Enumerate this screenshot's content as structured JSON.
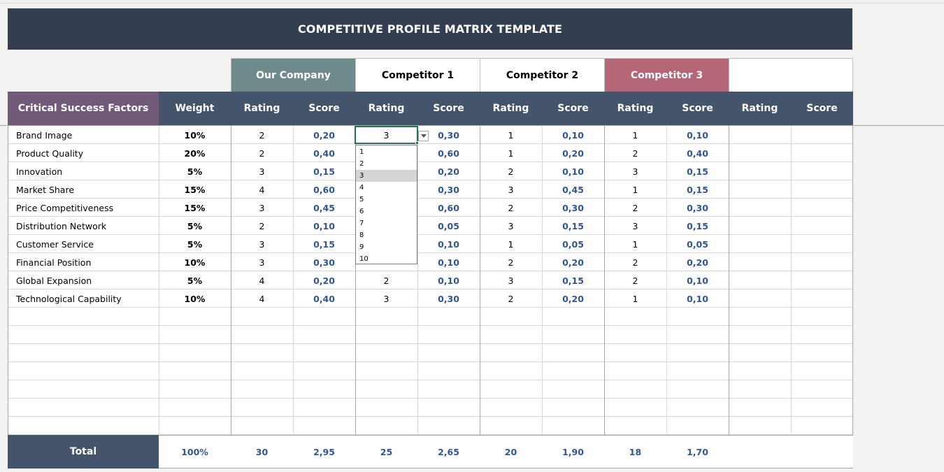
{
  "title": "COMPETITIVE PROFILE MATRIX TEMPLATE",
  "companies": [
    {
      "name": "Our Company",
      "bg": "#6f8a8a",
      "fg": "#ffffff"
    },
    {
      "name": "Competitor 1",
      "bg": "#ffffff",
      "fg": "#000000"
    },
    {
      "name": "Competitor 2",
      "bg": "#ffffff",
      "fg": "#000000"
    },
    {
      "name": "Competitor 3",
      "bg": "#b56677",
      "fg": "#ffffff"
    },
    {
      "name": "",
      "bg": "#ffffff",
      "fg": "#000000"
    }
  ],
  "headers": {
    "factors": "Critical Success Factors",
    "weight": "Weight",
    "rating": "Rating",
    "score": "Score"
  },
  "rows": [
    {
      "factor": "Brand Image",
      "weight": "10%",
      "r": [
        "2",
        "3",
        "1",
        "1"
      ],
      "s": [
        "0,20",
        "0,30",
        "0,10",
        "0,10"
      ]
    },
    {
      "factor": "Product Quality",
      "weight": "20%",
      "r": [
        "2",
        "",
        "1",
        "2"
      ],
      "s": [
        "0,40",
        "0,60",
        "0,20",
        "0,40"
      ]
    },
    {
      "factor": "Innovation",
      "weight": "5%",
      "r": [
        "3",
        "",
        "2",
        "3"
      ],
      "s": [
        "0,15",
        "0,20",
        "0,10",
        "0,15"
      ]
    },
    {
      "factor": "Market Share",
      "weight": "15%",
      "r": [
        "4",
        "",
        "3",
        "1"
      ],
      "s": [
        "0,60",
        "0,30",
        "0,45",
        "0,15"
      ]
    },
    {
      "factor": "Price Competitiveness",
      "weight": "15%",
      "r": [
        "3",
        "",
        "2",
        "2"
      ],
      "s": [
        "0,45",
        "0,60",
        "0,30",
        "0,30"
      ]
    },
    {
      "factor": "Distribution Network",
      "weight": "5%",
      "r": [
        "2",
        "",
        "3",
        "3"
      ],
      "s": [
        "0,10",
        "0,05",
        "0,15",
        "0,15"
      ]
    },
    {
      "factor": "Customer Service",
      "weight": "5%",
      "r": [
        "3",
        "",
        "1",
        "1"
      ],
      "s": [
        "0,15",
        "0,10",
        "0,05",
        "0,05"
      ]
    },
    {
      "factor": "Financial Position",
      "weight": "10%",
      "r": [
        "3",
        "",
        "2",
        "2"
      ],
      "s": [
        "0,30",
        "0,10",
        "0,20",
        "0,20"
      ]
    },
    {
      "factor": "Global Expansion",
      "weight": "5%",
      "r": [
        "4",
        "2",
        "3",
        "2"
      ],
      "s": [
        "0,20",
        "0,10",
        "0,15",
        "0,10"
      ]
    },
    {
      "factor": "Technological Capability",
      "weight": "10%",
      "r": [
        "4",
        "3",
        "2",
        "1"
      ],
      "s": [
        "0,40",
        "0,30",
        "0,20",
        "0,10"
      ]
    }
  ],
  "total": {
    "label": "Total",
    "weight": "100%",
    "values": [
      "30",
      "2,95",
      "25",
      "2,65",
      "20",
      "1,90",
      "18",
      "1,70"
    ]
  },
  "selected_cell_value": "3",
  "dropdown": {
    "options": [
      "1",
      "2",
      "3",
      "4",
      "5",
      "6",
      "7",
      "8",
      "9",
      "10"
    ],
    "highlighted_index": 2
  }
}
